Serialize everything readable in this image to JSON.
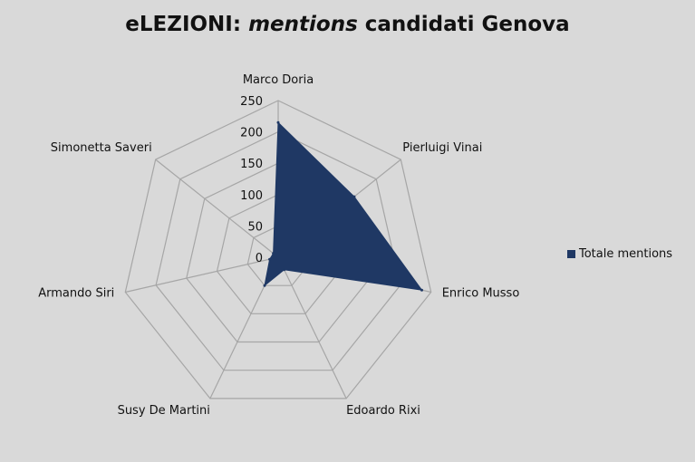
{
  "title_prefix": "eLEZIONI:",
  "title_italic": "mentions",
  "title_suffix": "candidati Genova",
  "chart_data": {
    "type": "radar",
    "title": "eLEZIONI: mentions candidati Genova",
    "categories": [
      "Marco Doria",
      "Pierluigi Vinai",
      "Enrico Musso",
      "Edoardo Rixi",
      "Susy De Martini",
      "Armando Siri",
      "Simonetta Saveri"
    ],
    "series": [
      {
        "name": "Totale mentions",
        "values": [
          215,
          155,
          235,
          22,
          50,
          14,
          10
        ],
        "color": "#1f3864"
      }
    ],
    "rlim": [
      0,
      250
    ],
    "ticks": [
      0,
      50,
      100,
      150,
      200,
      250
    ],
    "grid": true,
    "legend": "right",
    "background": "#d9d9d9",
    "grid_color": "#a6a6a6"
  }
}
